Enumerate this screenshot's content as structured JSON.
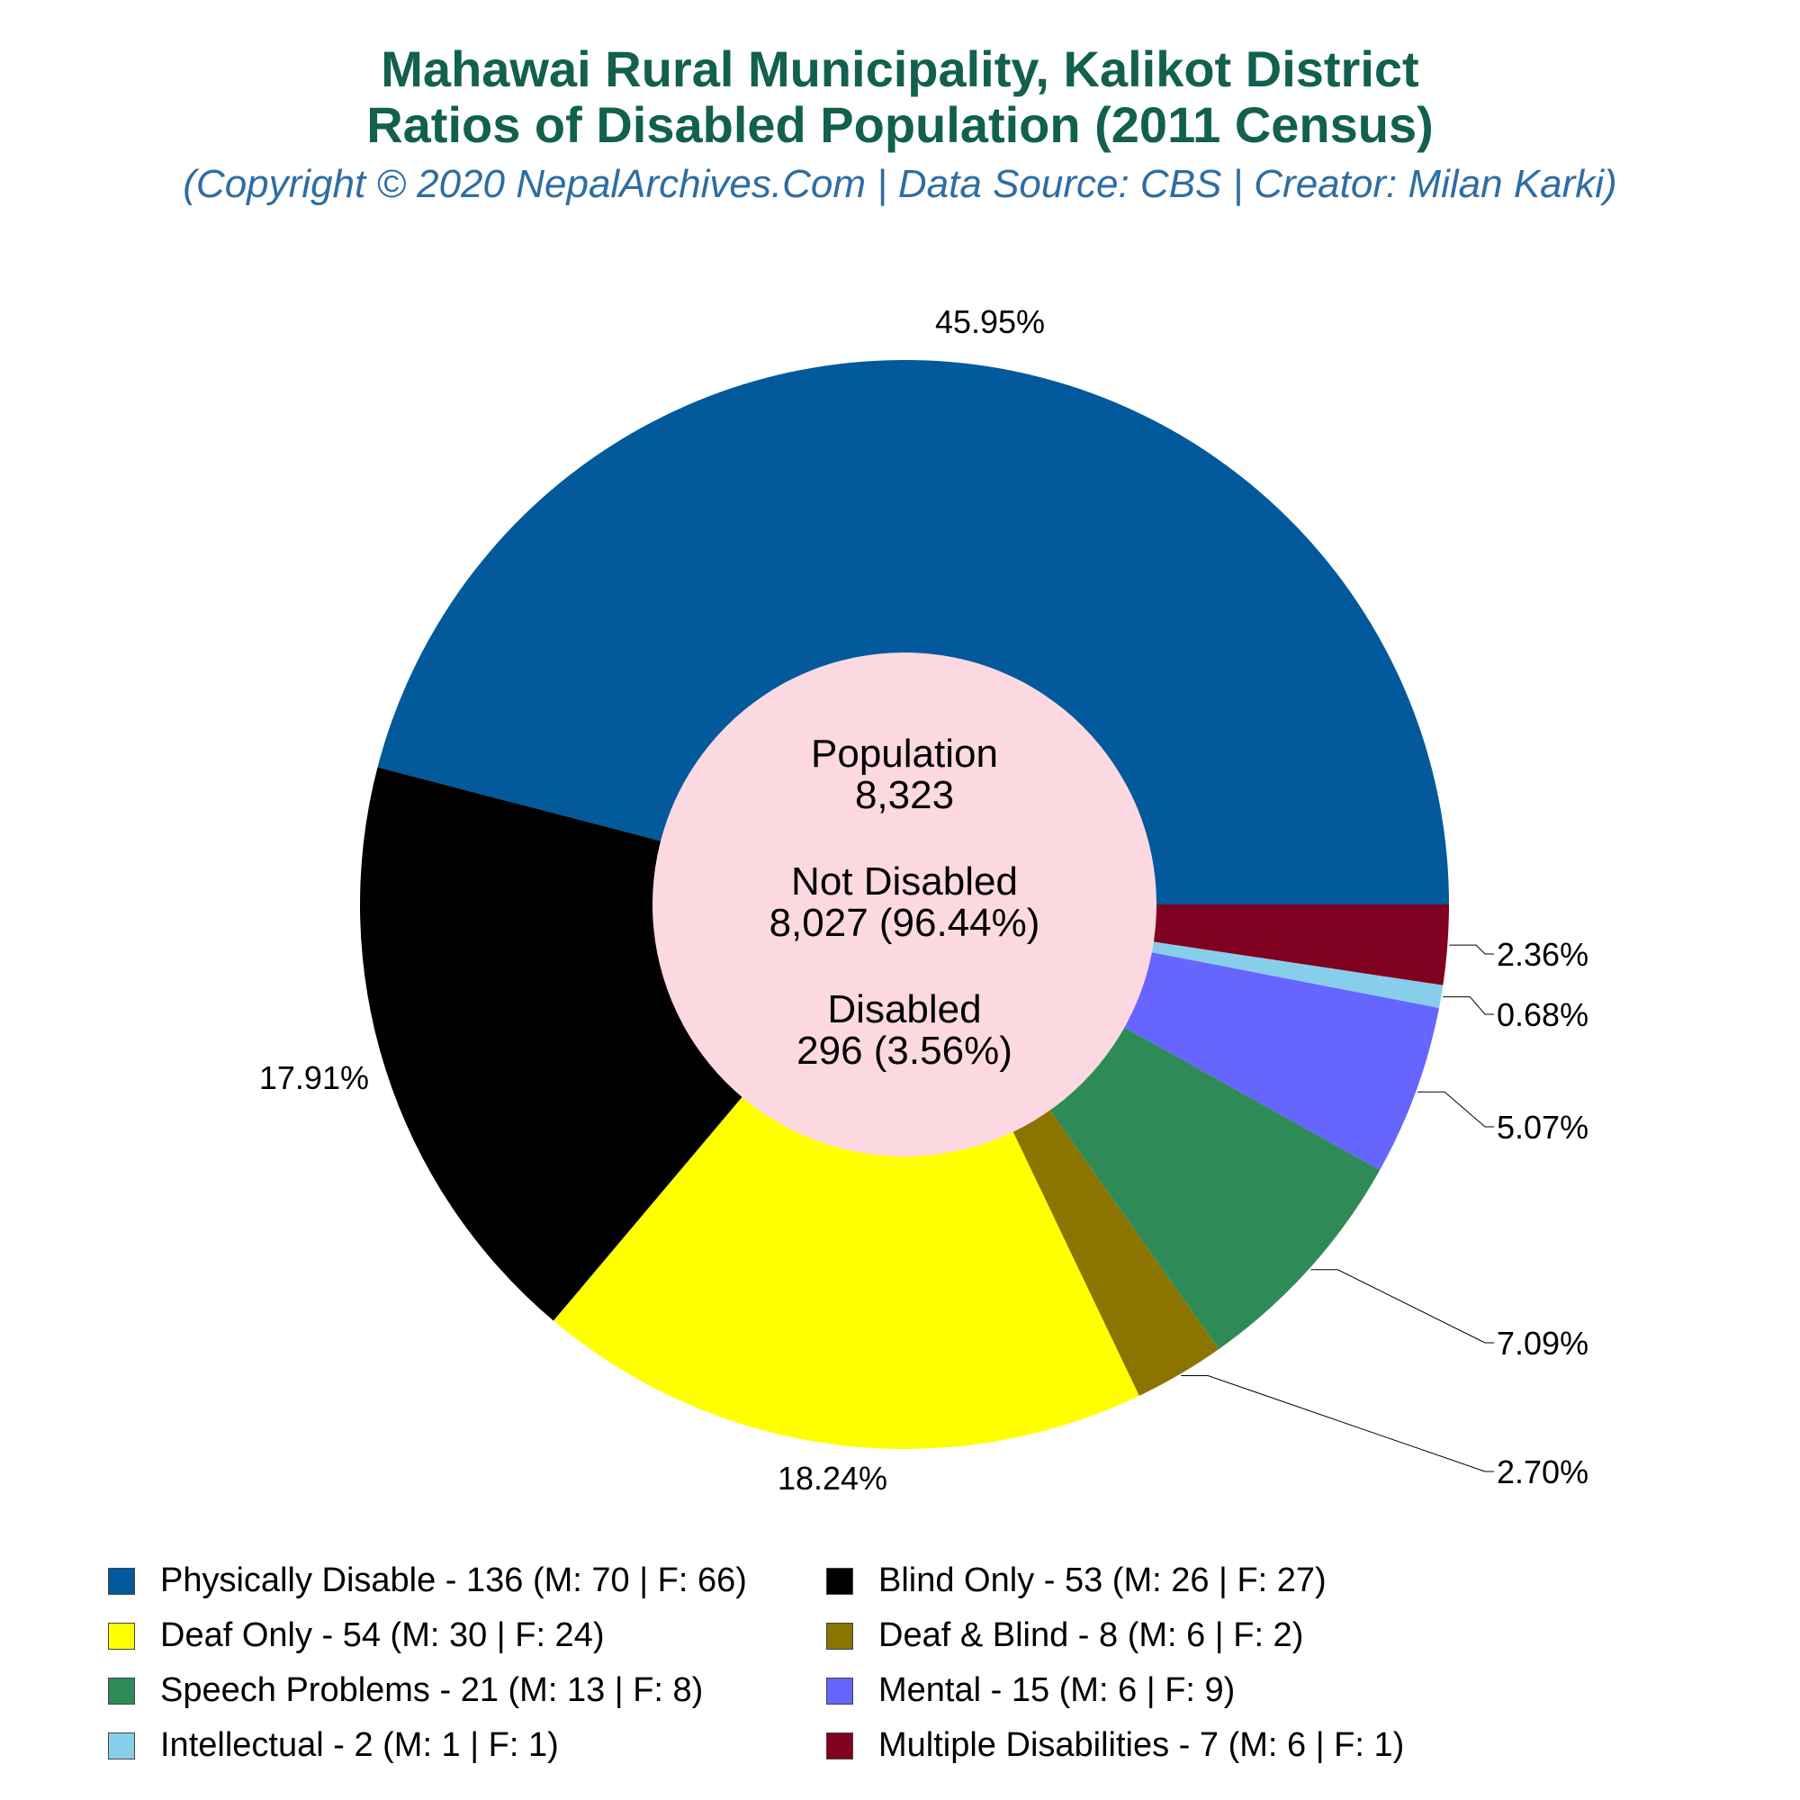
{
  "title_line1": "Mahawai Rural Municipality, Kalikot District",
  "title_line2": "Ratios of Disabled Population (2011 Census)",
  "subtitle": "(Copyright © 2020 NepalArchives.Com | Data Source: CBS | Creator: Milan Karki)",
  "center": {
    "population_label": "Population",
    "population_value": "8,323",
    "not_disabled_label": "Not Disabled",
    "not_disabled_value": "8,027 (96.44%)",
    "disabled_label": "Disabled",
    "disabled_value": "296 (3.56%)"
  },
  "colors": {
    "title": "#12604e",
    "subtitle": "#2e6da4",
    "center_fill": "#fcd9e0"
  },
  "chart_data": {
    "type": "pie",
    "start_angle_deg": 0,
    "direction": "counterclockwise",
    "donut": true,
    "legend_position": "bottom",
    "slices": [
      {
        "label": "Physically Disable",
        "value": 136,
        "male": 70,
        "female": 66,
        "percent_label": "45.95%",
        "color": "#02599c",
        "legend": "Physically Disable - 136 (M: 70 | F: 66)"
      },
      {
        "label": "Blind Only",
        "value": 53,
        "male": 26,
        "female": 27,
        "percent_label": "17.91%",
        "color": "#000000",
        "legend": "Blind Only - 53 (M: 26 | F: 27)"
      },
      {
        "label": "Deaf Only",
        "value": 54,
        "male": 30,
        "female": 24,
        "percent_label": "18.24%",
        "color": "#ffff00",
        "legend": "Deaf Only - 54 (M: 30 | F: 24)"
      },
      {
        "label": "Deaf & Blind",
        "value": 8,
        "male": 6,
        "female": 2,
        "percent_label": "2.70%",
        "color": "#8b7500",
        "legend": "Deaf & Blind - 8 (M: 6 | F: 2)"
      },
      {
        "label": "Speech Problems",
        "value": 21,
        "male": 13,
        "female": 8,
        "percent_label": "7.09%",
        "color": "#2e8b57",
        "legend": "Speech Problems - 21 (M: 13 | F: 8)"
      },
      {
        "label": "Mental",
        "value": 15,
        "male": 6,
        "female": 9,
        "percent_label": "5.07%",
        "color": "#6666ff",
        "legend": "Mental - 15 (M: 6 | F: 9)"
      },
      {
        "label": "Intellectual",
        "value": 2,
        "male": 1,
        "female": 1,
        "percent_label": "0.68%",
        "color": "#87ceeb",
        "legend": "Intellectual - 2 (M: 1 | F: 1)"
      },
      {
        "label": "Multiple Disabilities",
        "value": 7,
        "male": 6,
        "female": 1,
        "percent_label": "2.36%",
        "color": "#800020",
        "legend": "Multiple Disabilities - 7 (M: 6 | F: 1)"
      }
    ],
    "legend_order": [
      0,
      1,
      2,
      3,
      4,
      5,
      6,
      7
    ]
  }
}
